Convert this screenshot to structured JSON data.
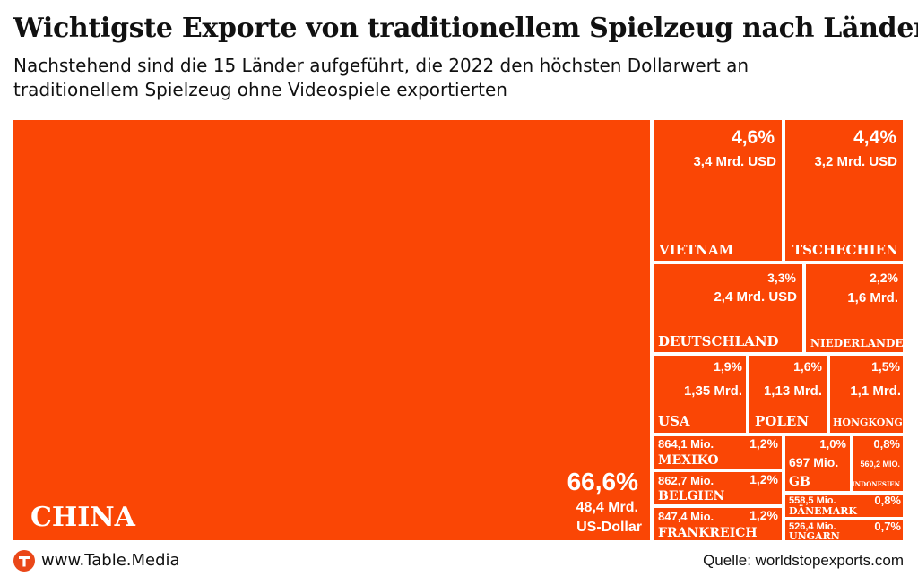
{
  "header": {
    "title": "Wichtigste Exporte von traditionellem Spielzeug nach Ländern",
    "subtitle": "Nachstehend sind die 15 Länder aufgeführt, die 2022 den höchsten Dollarwert an traditionellem Spielzeug ohne Videospiele exportierten"
  },
  "footer": {
    "logo_icon": "table-media-t-logo-icon",
    "url": "www.Table.Media",
    "source": "Quelle: worldstopexports.com"
  },
  "colors": {
    "tile": "#fa4605",
    "border": "#ffffff",
    "logo": "#ea4718"
  },
  "chart_data": {
    "type": "treemap",
    "unit": "US-Dollar",
    "year": 2022,
    "items": [
      {
        "country": "CHINA",
        "share_pct": 66.6,
        "share_label": "66,6%",
        "value_label": "48,4 Mrd. US-Dollar",
        "value_usd": 48400000000.0
      },
      {
        "country": "VIETNAM",
        "share_pct": 4.6,
        "share_label": "4,6%",
        "value_label": "3,4 Mrd. USD",
        "value_usd": 3400000000.0
      },
      {
        "country": "TSCHECHIEN",
        "share_pct": 4.4,
        "share_label": "4,4%",
        "value_label": "3,2 Mrd. USD",
        "value_usd": 3200000000.0
      },
      {
        "country": "DEUTSCHLAND",
        "share_pct": 3.3,
        "share_label": "3,3%",
        "value_label": "2,4 Mrd. USD",
        "value_usd": 2400000000.0
      },
      {
        "country": "NIEDERLANDE",
        "share_pct": 2.2,
        "share_label": "2,2%",
        "value_label": "1,6 Mrd.",
        "value_usd": 1600000000.0
      },
      {
        "country": "USA",
        "share_pct": 1.9,
        "share_label": "1,9%",
        "value_label": "1,35 Mrd.",
        "value_usd": 1350000000.0
      },
      {
        "country": "POLEN",
        "share_pct": 1.6,
        "share_label": "1,6%",
        "value_label": "1,13 Mrd.",
        "value_usd": 1130000000.0
      },
      {
        "country": "HONGKONG",
        "share_pct": 1.5,
        "share_label": "1,5%",
        "value_label": "1,1 Mrd.",
        "value_usd": 1100000000.0
      },
      {
        "country": "MEXIKO",
        "share_pct": 1.2,
        "share_label": "1,2%",
        "value_label": "864,1 Mio.",
        "value_usd": 864100000.0
      },
      {
        "country": "BELGIEN",
        "share_pct": 1.2,
        "share_label": "1,2%",
        "value_label": "862,7 Mio.",
        "value_usd": 862700000.0
      },
      {
        "country": "FRANKREICH",
        "share_pct": 1.2,
        "share_label": "1,2%",
        "value_label": "847,4 Mio.",
        "value_usd": 847400000.0
      },
      {
        "country": "GB",
        "share_pct": 1.0,
        "share_label": "1,0%",
        "value_label": "697 Mio.",
        "value_usd": 697000000.0
      },
      {
        "country": "INDONESIEN",
        "share_pct": 0.8,
        "share_label": "0,8%",
        "value_label": "560,2 MIO.",
        "value_usd": 560200000.0
      },
      {
        "country": "DÄNEMARK",
        "share_pct": 0.8,
        "share_label": "0,8%",
        "value_label": "558,5 Mio.",
        "value_usd": 558500000.0
      },
      {
        "country": "UNGARN",
        "share_pct": 0.7,
        "share_label": "0,7%",
        "value_label": "526,4 Mio.",
        "value_usd": 526400000.0
      }
    ]
  }
}
